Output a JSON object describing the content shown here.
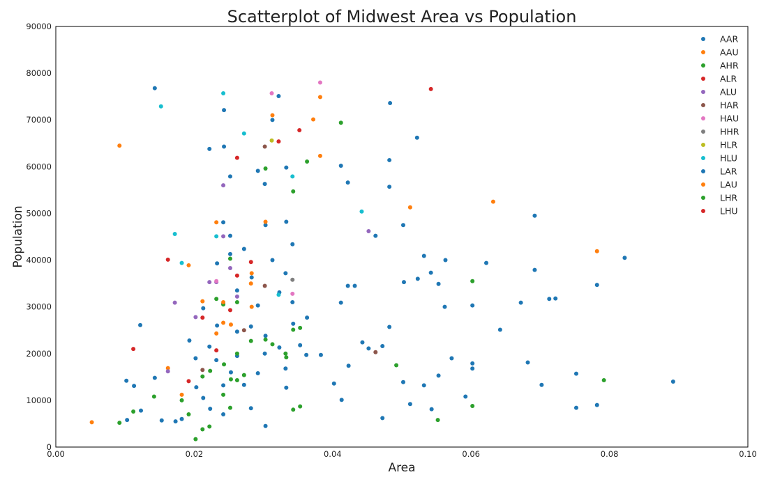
{
  "chart_data": {
    "type": "scatter",
    "title": "Scatterplot of Midwest Area vs Population",
    "xlabel": "Area",
    "ylabel": "Population",
    "xlim": [
      0.0,
      0.1
    ],
    "ylim": [
      0,
      90000
    ],
    "xticks": [
      "0.00",
      "0.02",
      "0.04",
      "0.06",
      "0.08",
      "0.10"
    ],
    "yticks": [
      "0",
      "10000",
      "20000",
      "30000",
      "40000",
      "50000",
      "60000",
      "70000",
      "80000",
      "90000"
    ],
    "grid": false,
    "legend_position": "top-right",
    "series": [
      {
        "name": "AAR",
        "color": "#1f77b4",
        "points": [
          [
            0.0103,
            5800
          ],
          [
            0.0123,
            7800
          ],
          [
            0.0153,
            5700
          ],
          [
            0.0173,
            5500
          ],
          [
            0.0182,
            6000
          ],
          [
            0.0223,
            8200
          ],
          [
            0.0242,
            7000
          ],
          [
            0.0282,
            8300
          ],
          [
            0.0303,
            4500
          ],
          [
            0.0113,
            13100
          ],
          [
            0.0143,
            14800
          ],
          [
            0.0203,
            12800
          ],
          [
            0.0213,
            10500
          ],
          [
            0.0242,
            13200
          ],
          [
            0.0253,
            16000
          ],
          [
            0.0272,
            13300
          ],
          [
            0.0292,
            15800
          ],
          [
            0.0333,
            12700
          ],
          [
            0.0193,
            22800
          ],
          [
            0.0222,
            21500
          ],
          [
            0.0233,
            26000
          ],
          [
            0.0262,
            19500
          ],
          [
            0.0282,
            25800
          ],
          [
            0.0303,
            23800
          ],
          [
            0.0323,
            21300
          ],
          [
            0.0353,
            21800
          ],
          [
            0.0383,
            19700
          ],
          [
            0.0213,
            29700
          ],
          [
            0.0242,
            30700
          ],
          [
            0.0262,
            33500
          ],
          [
            0.0292,
            30300
          ],
          [
            0.0323,
            33100
          ],
          [
            0.0342,
            31000
          ],
          [
            0.0233,
            39300
          ],
          [
            0.0252,
            41300
          ],
          [
            0.0283,
            36300
          ],
          [
            0.0313,
            40000
          ],
          [
            0.0342,
            43400
          ],
          [
            0.0303,
            47500
          ],
          [
            0.0333,
            48200
          ],
          [
            0.0242,
            48100
          ],
          [
            0.0252,
            45200
          ],
          [
            0.0302,
            56300
          ],
          [
            0.0292,
            59100
          ],
          [
            0.0333,
            59800
          ],
          [
            0.0252,
            57900
          ],
          [
            0.0222,
            63800
          ],
          [
            0.0243,
            64300
          ],
          [
            0.0243,
            72100
          ],
          [
            0.0313,
            70000
          ],
          [
            0.0322,
            75100
          ],
          [
            0.0143,
            76800
          ],
          [
            0.0412,
            60200
          ],
          [
            0.0422,
            56600
          ],
          [
            0.0483,
            73600
          ],
          [
            0.0482,
            61400
          ],
          [
            0.0482,
            55700
          ],
          [
            0.0522,
            66200
          ],
          [
            0.0412,
            30900
          ],
          [
            0.0422,
            34500
          ],
          [
            0.0432,
            34500
          ],
          [
            0.0462,
            45200
          ],
          [
            0.0502,
            47500
          ],
          [
            0.0532,
            40900
          ],
          [
            0.0563,
            40000
          ],
          [
            0.0553,
            34900
          ],
          [
            0.0602,
            30300
          ],
          [
            0.0622,
            39400
          ],
          [
            0.0672,
            30900
          ],
          [
            0.0692,
            37900
          ],
          [
            0.0692,
            49500
          ],
          [
            0.0713,
            31700
          ],
          [
            0.0782,
            34700
          ],
          [
            0.0822,
            40500
          ],
          [
            0.0402,
            13600
          ],
          [
            0.0413,
            10100
          ],
          [
            0.0423,
            17400
          ],
          [
            0.0452,
            21100
          ],
          [
            0.0472,
            21600
          ],
          [
            0.0482,
            25700
          ],
          [
            0.0502,
            13900
          ],
          [
            0.0512,
            9200
          ],
          [
            0.0532,
            13200
          ],
          [
            0.0543,
            8100
          ],
          [
            0.0553,
            15300
          ],
          [
            0.0572,
            19000
          ],
          [
            0.0592,
            10800
          ],
          [
            0.0602,
            17900
          ],
          [
            0.0642,
            25100
          ],
          [
            0.0682,
            18100
          ],
          [
            0.0702,
            13300
          ],
          [
            0.0752,
            15700
          ],
          [
            0.0752,
            8400
          ],
          [
            0.0782,
            9000
          ],
          [
            0.0892,
            14000
          ],
          [
            0.0472,
            6200
          ],
          [
            0.0363,
            27700
          ],
          [
            0.0343,
            26400
          ]
        ]
      },
      {
        "name": "AAU",
        "color": "#ff7f0e",
        "points": [
          [
            0.0052,
            5300
          ],
          [
            0.0092,
            64500
          ],
          [
            0.0162,
            16900
          ],
          [
            0.0182,
            11200
          ],
          [
            0.0192,
            38900
          ],
          [
            0.0212,
            31200
          ],
          [
            0.0232,
            48100
          ],
          [
            0.0242,
            26600
          ],
          [
            0.0253,
            26200
          ],
          [
            0.0283,
            37200
          ],
          [
            0.0283,
            30000
          ],
          [
            0.0303,
            48200
          ],
          [
            0.0313,
            71000
          ],
          [
            0.0372,
            70100
          ],
          [
            0.0382,
            74900
          ],
          [
            0.0382,
            62300
          ],
          [
            0.0512,
            51300
          ],
          [
            0.0632,
            52500
          ],
          [
            0.0782,
            41900
          ]
        ]
      },
      {
        "name": "AHR",
        "color": "#2ca02c",
        "points": [
          [
            0.0092,
            5200
          ],
          [
            0.0112,
            7600
          ],
          [
            0.0142,
            10800
          ],
          [
            0.0182,
            10000
          ],
          [
            0.0192,
            7000
          ],
          [
            0.0202,
            1700
          ],
          [
            0.0212,
            3800
          ],
          [
            0.0222,
            4400
          ],
          [
            0.0212,
            15100
          ],
          [
            0.0223,
            16300
          ],
          [
            0.0243,
            17700
          ],
          [
            0.0253,
            14500
          ],
          [
            0.0242,
            11200
          ],
          [
            0.0252,
            8400
          ],
          [
            0.0262,
            20000
          ],
          [
            0.0272,
            15400
          ],
          [
            0.0282,
            22700
          ],
          [
            0.0303,
            23000
          ],
          [
            0.0313,
            22000
          ],
          [
            0.0333,
            19200
          ],
          [
            0.0343,
            25100
          ],
          [
            0.0353,
            25500
          ],
          [
            0.0343,
            8000
          ],
          [
            0.0353,
            8700
          ],
          [
            0.0242,
            30500
          ],
          [
            0.0262,
            31000
          ],
          [
            0.0252,
            40300
          ],
          [
            0.0303,
            59600
          ],
          [
            0.0343,
            54700
          ],
          [
            0.0363,
            61100
          ],
          [
            0.0412,
            69400
          ],
          [
            0.0492,
            17500
          ],
          [
            0.0552,
            5800
          ],
          [
            0.0602,
            8800
          ],
          [
            0.0602,
            35500
          ],
          [
            0.0792,
            14300
          ]
        ]
      },
      {
        "name": "ALR",
        "color": "#d62728",
        "points": [
          [
            0.0112,
            21000
          ],
          [
            0.0162,
            40100
          ],
          [
            0.0192,
            14100
          ],
          [
            0.0212,
            27700
          ],
          [
            0.0252,
            29300
          ],
          [
            0.0262,
            61900
          ],
          [
            0.0262,
            36700
          ],
          [
            0.0282,
            39600
          ],
          [
            0.0322,
            65400
          ],
          [
            0.0352,
            67800
          ],
          [
            0.0542,
            76600
          ]
        ]
      },
      {
        "name": "ALU",
        "color": "#9467bd",
        "points": [
          [
            0.0162,
            16200
          ],
          [
            0.0172,
            30900
          ],
          [
            0.0202,
            27800
          ],
          [
            0.0222,
            35300
          ],
          [
            0.0232,
            35300
          ],
          [
            0.0242,
            45100
          ],
          [
            0.0242,
            56000
          ],
          [
            0.0252,
            38300
          ],
          [
            0.0262,
            32200
          ],
          [
            0.0452,
            46200
          ]
        ]
      },
      {
        "name": "HAR",
        "color": "#8c564b",
        "points": [
          [
            0.0212,
            16500
          ],
          [
            0.0272,
            25000
          ],
          [
            0.0302,
            34500
          ],
          [
            0.0302,
            64300
          ],
          [
            0.0462,
            20300
          ]
        ]
      },
      {
        "name": "HAU",
        "color": "#e377c2",
        "points": [
          [
            0.0232,
            35500
          ],
          [
            0.0312,
            75700
          ],
          [
            0.0342,
            32800
          ],
          [
            0.0382,
            78000
          ]
        ]
      },
      {
        "name": "HHR",
        "color": "#7f7f7f",
        "points": [
          [
            0.0342,
            35800
          ]
        ]
      },
      {
        "name": "HLR",
        "color": "#bcbd22",
        "points": [
          [
            0.0312,
            65600
          ]
        ]
      },
      {
        "name": "HLU",
        "color": "#17becf",
        "points": [
          [
            0.0152,
            72900
          ],
          [
            0.0172,
            45600
          ],
          [
            0.0182,
            39400
          ],
          [
            0.0232,
            45100
          ],
          [
            0.0242,
            75700
          ],
          [
            0.0272,
            67100
          ],
          [
            0.0322,
            32600
          ],
          [
            0.0342,
            57900
          ],
          [
            0.0442,
            50400
          ]
        ]
      },
      {
        "name": "LAR",
        "color": "#1f77b4",
        "points": [
          [
            0.0102,
            14200
          ],
          [
            0.0122,
            26100
          ],
          [
            0.0202,
            19000
          ],
          [
            0.0232,
            18600
          ],
          [
            0.0262,
            24700
          ],
          [
            0.0302,
            20000
          ],
          [
            0.0332,
            16800
          ],
          [
            0.0362,
            19700
          ],
          [
            0.0443,
            22400
          ],
          [
            0.0503,
            35300
          ],
          [
            0.0523,
            36000
          ],
          [
            0.0542,
            37300
          ],
          [
            0.0562,
            30000
          ],
          [
            0.0602,
            16800
          ],
          [
            0.0722,
            31800
          ],
          [
            0.0332,
            37200
          ],
          [
            0.0272,
            42400
          ]
        ]
      },
      {
        "name": "LAU",
        "color": "#ff7f0e",
        "points": [
          [
            0.0282,
            35000
          ],
          [
            0.0242,
            31000
          ],
          [
            0.0232,
            24300
          ]
        ]
      },
      {
        "name": "LHR",
        "color": "#2ca02c",
        "points": [
          [
            0.0232,
            31700
          ],
          [
            0.0262,
            14300
          ],
          [
            0.0332,
            20000
          ]
        ]
      },
      {
        "name": "LHU",
        "color": "#d62728",
        "points": [
          [
            0.0232,
            20700
          ]
        ]
      }
    ]
  }
}
